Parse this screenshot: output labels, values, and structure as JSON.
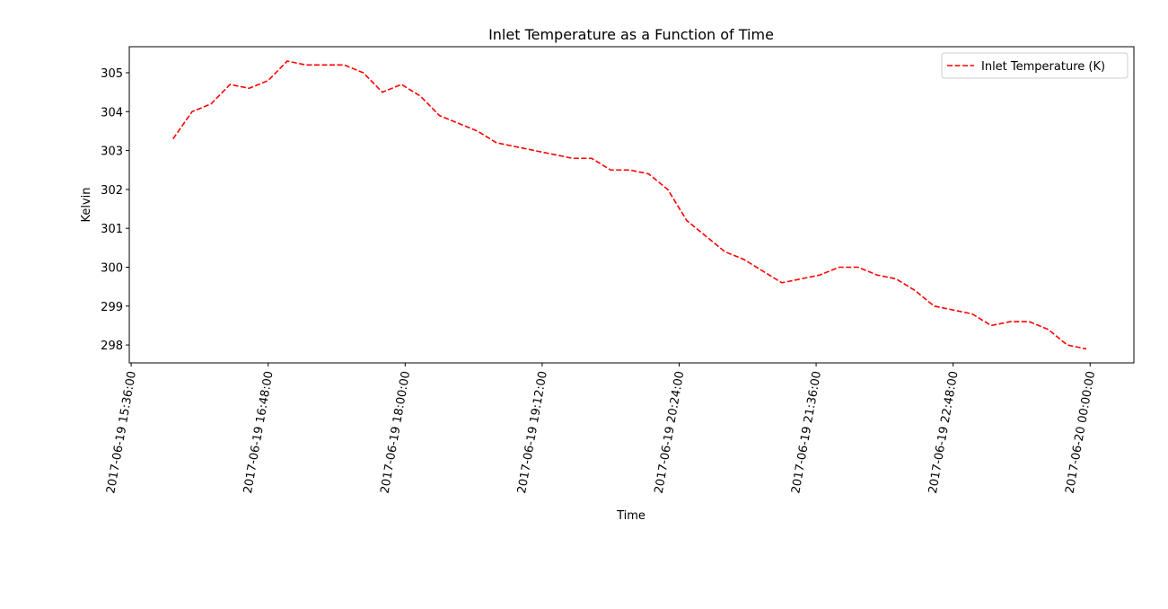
{
  "chart_data": {
    "type": "line",
    "title": "Inlet Temperature as a Function of Time",
    "x_label": "Time",
    "y_label": "Kelvin",
    "x": [
      "2017-06-19 15:58:00",
      "2017-06-19 16:08:00",
      "2017-06-19 16:18:00",
      "2017-06-19 16:28:00",
      "2017-06-19 16:38:00",
      "2017-06-19 16:48:00",
      "2017-06-19 16:58:00",
      "2017-06-19 17:08:00",
      "2017-06-19 17:18:00",
      "2017-06-19 17:28:00",
      "2017-06-19 17:38:00",
      "2017-06-19 17:48:00",
      "2017-06-19 17:58:00",
      "2017-06-19 18:08:00",
      "2017-06-19 18:18:00",
      "2017-06-19 18:28:00",
      "2017-06-19 18:38:00",
      "2017-06-19 18:48:00",
      "2017-06-19 18:58:00",
      "2017-06-19 19:08:00",
      "2017-06-19 19:18:00",
      "2017-06-19 19:28:00",
      "2017-06-19 19:38:00",
      "2017-06-19 19:48:00",
      "2017-06-19 19:58:00",
      "2017-06-19 20:08:00",
      "2017-06-19 20:18:00",
      "2017-06-19 20:28:00",
      "2017-06-19 20:38:00",
      "2017-06-19 20:48:00",
      "2017-06-19 20:58:00",
      "2017-06-19 21:08:00",
      "2017-06-19 21:18:00",
      "2017-06-19 21:28:00",
      "2017-06-19 21:38:00",
      "2017-06-19 21:48:00",
      "2017-06-19 21:58:00",
      "2017-06-19 22:08:00",
      "2017-06-19 22:18:00",
      "2017-06-19 22:28:00",
      "2017-06-19 22:38:00",
      "2017-06-19 22:48:00",
      "2017-06-19 22:58:00",
      "2017-06-19 23:08:00",
      "2017-06-19 23:18:00",
      "2017-06-19 23:28:00",
      "2017-06-19 23:38:00",
      "2017-06-19 23:48:00",
      "2017-06-19 23:58:00"
    ],
    "series": [
      {
        "name": "Inlet Temperature (K)",
        "color": "#ff0000",
        "dashed": true,
        "values": [
          303.3,
          304.0,
          304.2,
          304.7,
          304.6,
          304.8,
          305.3,
          305.2,
          305.2,
          305.2,
          305.0,
          304.5,
          304.7,
          304.4,
          303.9,
          303.7,
          303.5,
          303.2,
          303.1,
          303.0,
          302.9,
          302.8,
          302.8,
          302.5,
          302.5,
          302.4,
          302.0,
          301.2,
          300.8,
          300.4,
          300.2,
          299.9,
          299.6,
          299.7,
          299.8,
          300.0,
          300.0,
          299.8,
          299.7,
          299.4,
          299.0,
          298.9,
          298.8,
          298.5,
          298.6,
          298.6,
          298.4,
          298.0,
          297.9
        ]
      }
    ],
    "xlim": [
      "2017-06-19 15:35:00",
      "2017-06-20 00:23:00"
    ],
    "xticks": [
      "2017-06-19 15:36:00",
      "2017-06-19 16:48:00",
      "2017-06-19 18:00:00",
      "2017-06-19 19:12:00",
      "2017-06-19 20:24:00",
      "2017-06-19 21:36:00",
      "2017-06-19 22:48:00",
      "2017-06-20 00:00:00"
    ],
    "ylim": [
      297.54,
      305.67
    ],
    "yticks": [
      298,
      299,
      300,
      301,
      302,
      303,
      304,
      305
    ],
    "legend": "upper right"
  }
}
